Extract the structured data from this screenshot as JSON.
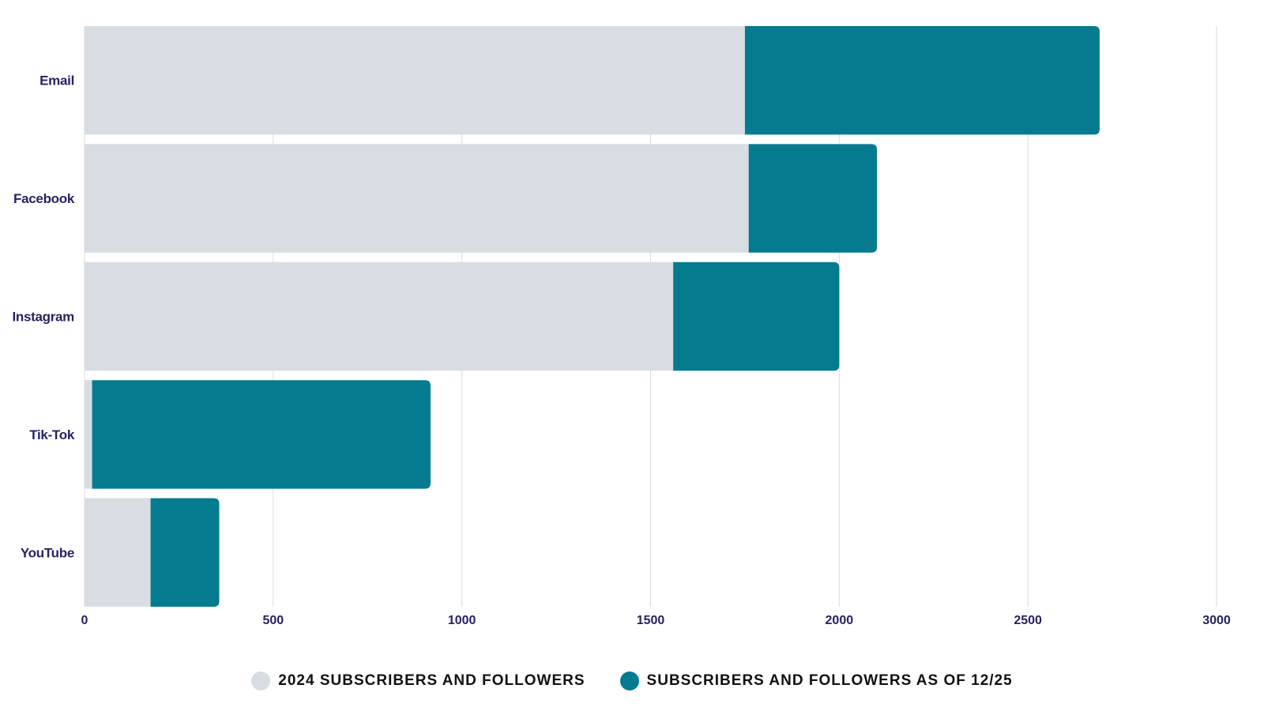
{
  "chart_data": {
    "type": "bar",
    "orientation": "horizontal",
    "stacked": true,
    "categories": [
      "Email",
      "Facebook",
      "Instagram",
      "Tik-Tok",
      "YouTube"
    ],
    "series": [
      {
        "name": "2024 SUBSCRIBERS AND FOLLOWERS",
        "color": "#d8dce3",
        "values": [
          1750,
          1760,
          1560,
          20,
          175
        ]
      },
      {
        "name": "SUBSCRIBERS AND FOLLOWERS AS OF 12/25",
        "color": "#047b8f",
        "values": [
          940,
          340,
          440,
          897,
          182
        ]
      }
    ],
    "xlim": [
      0,
      3000
    ],
    "x_ticks": [
      "0",
      "500",
      "1000",
      "1500",
      "2000",
      "2500",
      "3000"
    ],
    "grid": true,
    "legend_position": "bottom",
    "label_color": "#262262",
    "grid_color": "#dcdcdc"
  }
}
